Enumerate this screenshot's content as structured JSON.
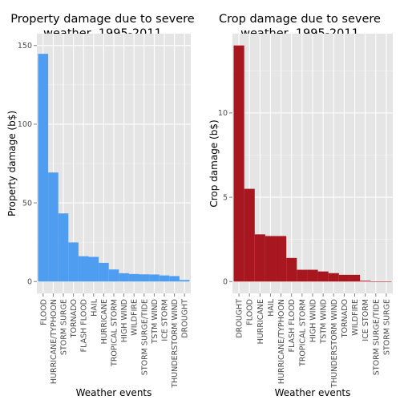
{
  "chart_data": [
    {
      "type": "bar",
      "title_lines": [
        "Property damage due to severe",
        "weather, 1995-2011"
      ],
      "xlabel": "Weather events",
      "ylabel": "Property damage (b$)",
      "ylim": [
        0,
        150
      ],
      "yticks": [
        "0",
        "50",
        "100",
        "150"
      ],
      "grid": true,
      "color": "#4e9df0",
      "categories": [
        "FLOOD",
        "HURRICANE/TYPHOON",
        "STORM SURGE",
        "TORNADO",
        "FLASH FLOOD",
        "HAIL",
        "HURRICANE",
        "TROPICAL STORM",
        "HIGH WIND",
        "WILDFIRE",
        "STORM SURGE/TIDE",
        "TSTM WIND",
        "ICE STORM",
        "THUNDERSTORM WIND",
        "DROUGHT"
      ],
      "values": [
        144.7,
        69.3,
        43.3,
        24.9,
        16.1,
        15.7,
        11.9,
        7.7,
        5.3,
        4.8,
        4.6,
        4.5,
        3.9,
        3.5,
        1.0
      ]
    },
    {
      "type": "bar",
      "title_lines": [
        "Crop damage due to severe",
        "weather, 1995-2011"
      ],
      "xlabel": "Weather events",
      "ylabel": "Crop damage (b$)",
      "ylim": [
        0,
        14
      ],
      "yticks": [
        "0",
        "5",
        "10"
      ],
      "grid": true,
      "color": "#a8161f",
      "categories": [
        "DROUGHT",
        "FLOOD",
        "HURRICANE",
        "HAIL",
        "HURRICANE/TYPHOON",
        "FLASH FLOOD",
        "TROPICAL STORM",
        "HIGH WIND",
        "TSTM WIND",
        "THUNDERSTORM WIND",
        "TORNADO",
        "WILDFIRE",
        "ICE STORM",
        "STORM SURGE/TIDE",
        "STORM SURGE"
      ],
      "values": [
        14.0,
        5.5,
        2.8,
        2.7,
        2.7,
        1.4,
        0.7,
        0.7,
        0.6,
        0.5,
        0.4,
        0.4,
        0.05,
        0.01,
        0.01
      ]
    }
  ]
}
